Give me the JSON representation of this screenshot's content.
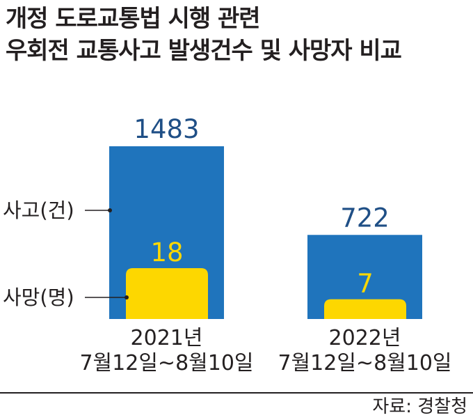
{
  "title": {
    "line1": "개정 도로교통법 시행 관련",
    "line2": "우회전 교통사고 발생건수 및 사망자 비교"
  },
  "source": "자료: 경찰청",
  "colors": {
    "accidents": "#1f74bc",
    "deaths": "#fdd700",
    "accident_label": "#1f4f86",
    "death_label": "#fdd700",
    "text": "#231f20"
  },
  "chart_data": {
    "type": "bar",
    "categories": [
      [
        "2021년",
        "7월12일~8월10일"
      ],
      [
        "2022년",
        "7월12일~8월10일"
      ]
    ],
    "series": [
      {
        "name": "사고(건)",
        "values": [
          1483,
          722
        ]
      },
      {
        "name": "사망(명)",
        "values": [
          18,
          7
        ]
      }
    ],
    "title": "개정 도로교통법 시행 관련 우회전 교통사고 발생건수 및 사망자 비교",
    "legend": "left, callout labels"
  }
}
